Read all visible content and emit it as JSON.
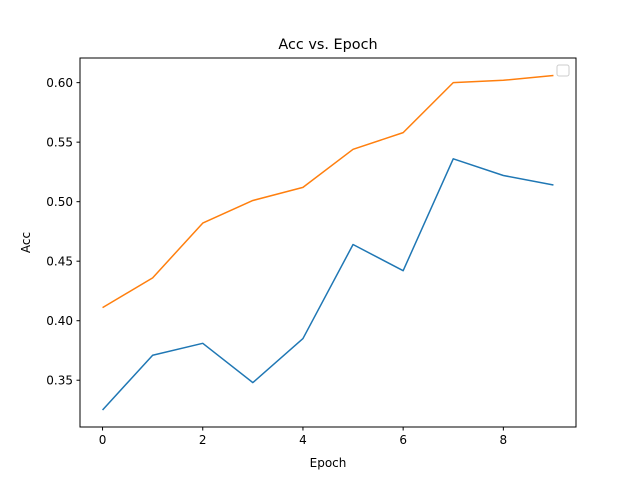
{
  "chart_data": {
    "type": "line",
    "title": "Acc vs. Epoch",
    "xlabel": "Epoch",
    "ylabel": "Acc",
    "x": [
      0,
      1,
      2,
      3,
      4,
      5,
      6,
      7,
      8,
      9
    ],
    "xlim": [
      -0.45,
      9.45
    ],
    "ylim": [
      0.3107,
      0.6207
    ],
    "xticks": [
      0,
      2,
      4,
      6,
      8
    ],
    "yticks": [
      0.35,
      0.4,
      0.45,
      0.5,
      0.55,
      0.6
    ],
    "xtick_labels": [
      "0",
      "2",
      "4",
      "6",
      "8"
    ],
    "ytick_labels": [
      "0.35",
      "0.40",
      "0.45",
      "0.50",
      "0.55",
      "0.60"
    ],
    "grid": false,
    "legend": "upper right",
    "series": [
      {
        "color": "#1f77b4",
        "values": [
          0.325,
          0.371,
          0.381,
          0.348,
          0.385,
          0.464,
          0.442,
          0.536,
          0.522,
          0.514
        ]
      },
      {
        "color": "#ff7f0e",
        "values": [
          0.411,
          0.436,
          0.482,
          0.501,
          0.512,
          0.544,
          0.558,
          0.6,
          0.602,
          0.606
        ]
      }
    ]
  }
}
